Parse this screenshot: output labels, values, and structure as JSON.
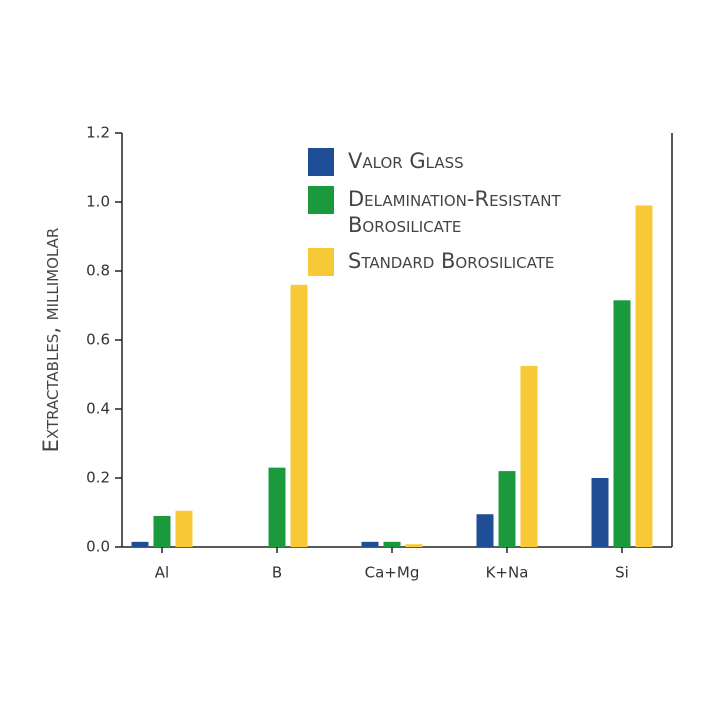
{
  "chart_data": {
    "type": "bar",
    "y_label": "Extractables, millimolar",
    "categories": [
      "Al",
      "B",
      "Ca+Mg",
      "K+Na",
      "Si"
    ],
    "series": [
      {
        "name": "Valor Glass",
        "color": "#1f4e96",
        "values": [
          0.015,
          0,
          0.015,
          0.095,
          0.2
        ]
      },
      {
        "name": "Delamination-Resistant Borosilicate",
        "color": "#1a9a3c",
        "values": [
          0.09,
          0.23,
          0.015,
          0.22,
          0.715
        ]
      },
      {
        "name": "Standard Borosilicate",
        "color": "#f7c936",
        "values": [
          0.105,
          0.76,
          0.008,
          0.525,
          0.99
        ]
      }
    ],
    "ylim": [
      0,
      1.2
    ],
    "yticks": [
      {
        "value": 0,
        "label": "0.0"
      },
      0.2,
      0.4,
      0.6,
      0.8,
      {
        "value": 1,
        "label": "1.0"
      },
      1.2
    ]
  }
}
